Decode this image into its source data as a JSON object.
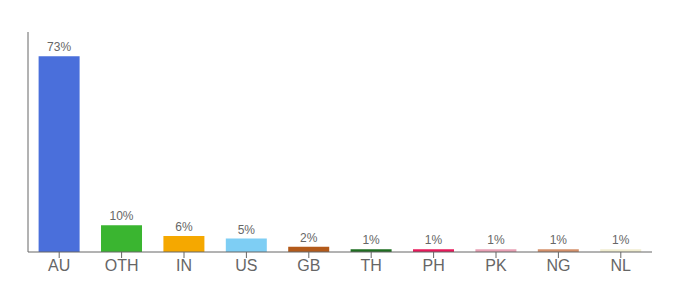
{
  "chart_data": {
    "type": "bar",
    "categories": [
      "AU",
      "OTH",
      "IN",
      "US",
      "GB",
      "TH",
      "PH",
      "PK",
      "NG",
      "NL"
    ],
    "values": [
      73,
      10,
      6,
      5,
      2,
      1,
      1,
      1,
      1,
      1
    ],
    "value_labels": [
      "73%",
      "10%",
      "6%",
      "5%",
      "2%",
      "1%",
      "1%",
      "1%",
      "1%",
      "1%"
    ],
    "colors": [
      "#4a6fdb",
      "#3ab530",
      "#f5a800",
      "#7ecef4",
      "#b35a1a",
      "#1e6e20",
      "#e8185a",
      "#e8a0b4",
      "#d4906a",
      "#f0edd0"
    ],
    "ylim": [
      0,
      82
    ],
    "data_labels": true,
    "tick_labels": "x",
    "grid": false
  }
}
